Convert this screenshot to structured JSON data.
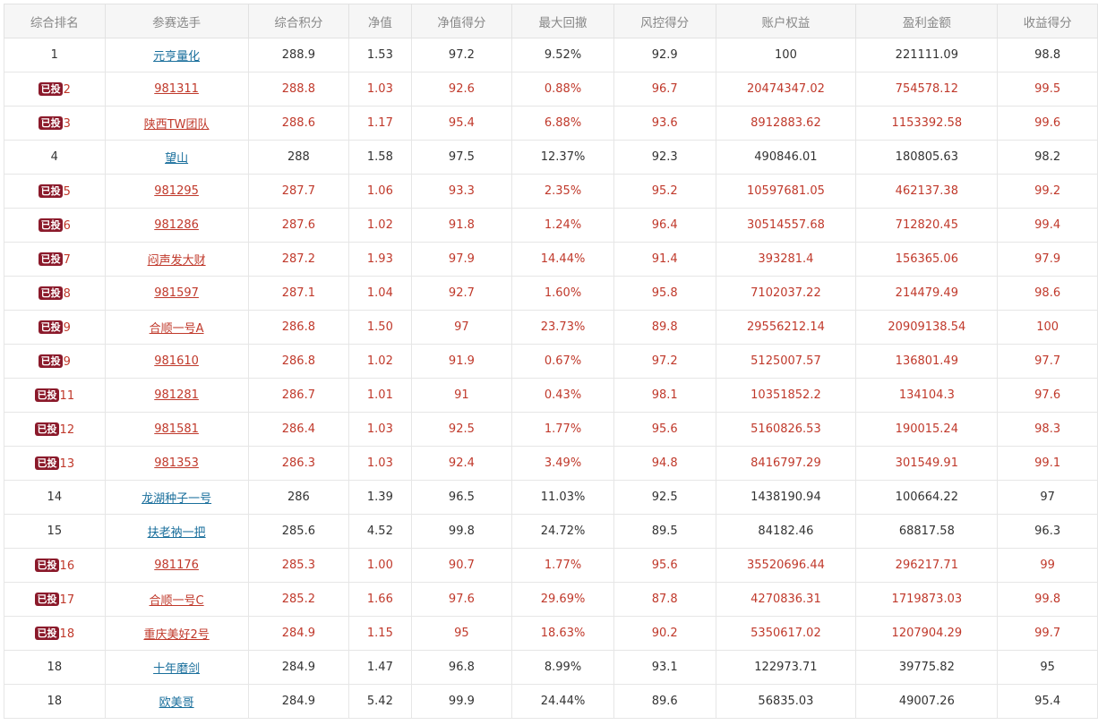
{
  "headers": [
    "综合排名",
    "参赛选手",
    "综合积分",
    "净值",
    "净值得分",
    "最大回撤",
    "风控得分",
    "账户权益",
    "盈利金额",
    "收益得分"
  ],
  "badge_label": "已投",
  "colors": {
    "invested_text": "#c0392b",
    "normal_text": "#333333",
    "link": "#1a6f9c",
    "badge_bg": "#8b1a2b",
    "header_bg": "#f6f6f6"
  },
  "rows": [
    {
      "rank": "1",
      "invested": false,
      "player": "元亨量化",
      "score": "288.9",
      "nav": "1.53",
      "nav_score": "97.2",
      "drawdown": "9.52%",
      "risk_score": "92.9",
      "equity": "100",
      "profit": "221111.09",
      "return_score": "98.8"
    },
    {
      "rank": "2",
      "invested": true,
      "player": "981311",
      "score": "288.8",
      "nav": "1.03",
      "nav_score": "92.6",
      "drawdown": "0.88%",
      "risk_score": "96.7",
      "equity": "20474347.02",
      "profit": "754578.12",
      "return_score": "99.5"
    },
    {
      "rank": "3",
      "invested": true,
      "player": "陕西TW团队",
      "score": "288.6",
      "nav": "1.17",
      "nav_score": "95.4",
      "drawdown": "6.88%",
      "risk_score": "93.6",
      "equity": "8912883.62",
      "profit": "1153392.58",
      "return_score": "99.6"
    },
    {
      "rank": "4",
      "invested": false,
      "player": "望山",
      "score": "288",
      "nav": "1.58",
      "nav_score": "97.5",
      "drawdown": "12.37%",
      "risk_score": "92.3",
      "equity": "490846.01",
      "profit": "180805.63",
      "return_score": "98.2"
    },
    {
      "rank": "5",
      "invested": true,
      "player": "981295",
      "score": "287.7",
      "nav": "1.06",
      "nav_score": "93.3",
      "drawdown": "2.35%",
      "risk_score": "95.2",
      "equity": "10597681.05",
      "profit": "462137.38",
      "return_score": "99.2"
    },
    {
      "rank": "6",
      "invested": true,
      "player": "981286",
      "score": "287.6",
      "nav": "1.02",
      "nav_score": "91.8",
      "drawdown": "1.24%",
      "risk_score": "96.4",
      "equity": "30514557.68",
      "profit": "712820.45",
      "return_score": "99.4"
    },
    {
      "rank": "7",
      "invested": true,
      "player": "闷声发大财",
      "score": "287.2",
      "nav": "1.93",
      "nav_score": "97.9",
      "drawdown": "14.44%",
      "risk_score": "91.4",
      "equity": "393281.4",
      "profit": "156365.06",
      "return_score": "97.9"
    },
    {
      "rank": "8",
      "invested": true,
      "player": "981597",
      "score": "287.1",
      "nav": "1.04",
      "nav_score": "92.7",
      "drawdown": "1.60%",
      "risk_score": "95.8",
      "equity": "7102037.22",
      "profit": "214479.49",
      "return_score": "98.6"
    },
    {
      "rank": "9",
      "invested": true,
      "player": "合顺一号A",
      "score": "286.8",
      "nav": "1.50",
      "nav_score": "97",
      "drawdown": "23.73%",
      "risk_score": "89.8",
      "equity": "29556212.14",
      "profit": "20909138.54",
      "return_score": "100"
    },
    {
      "rank": "9",
      "invested": true,
      "player": "981610",
      "score": "286.8",
      "nav": "1.02",
      "nav_score": "91.9",
      "drawdown": "0.67%",
      "risk_score": "97.2",
      "equity": "5125007.57",
      "profit": "136801.49",
      "return_score": "97.7"
    },
    {
      "rank": "11",
      "invested": true,
      "player": "981281",
      "score": "286.7",
      "nav": "1.01",
      "nav_score": "91",
      "drawdown": "0.43%",
      "risk_score": "98.1",
      "equity": "10351852.2",
      "profit": "134104.3",
      "return_score": "97.6"
    },
    {
      "rank": "12",
      "invested": true,
      "player": "981581",
      "score": "286.4",
      "nav": "1.03",
      "nav_score": "92.5",
      "drawdown": "1.77%",
      "risk_score": "95.6",
      "equity": "5160826.53",
      "profit": "190015.24",
      "return_score": "98.3"
    },
    {
      "rank": "13",
      "invested": true,
      "player": "981353",
      "score": "286.3",
      "nav": "1.03",
      "nav_score": "92.4",
      "drawdown": "3.49%",
      "risk_score": "94.8",
      "equity": "8416797.29",
      "profit": "301549.91",
      "return_score": "99.1"
    },
    {
      "rank": "14",
      "invested": false,
      "player": "龙湖种子一号",
      "score": "286",
      "nav": "1.39",
      "nav_score": "96.5",
      "drawdown": "11.03%",
      "risk_score": "92.5",
      "equity": "1438190.94",
      "profit": "100664.22",
      "return_score": "97"
    },
    {
      "rank": "15",
      "invested": false,
      "player": "扶老衲一把",
      "score": "285.6",
      "nav": "4.52",
      "nav_score": "99.8",
      "drawdown": "24.72%",
      "risk_score": "89.5",
      "equity": "84182.46",
      "profit": "68817.58",
      "return_score": "96.3"
    },
    {
      "rank": "16",
      "invested": true,
      "player": "981176",
      "score": "285.3",
      "nav": "1.00",
      "nav_score": "90.7",
      "drawdown": "1.77%",
      "risk_score": "95.6",
      "equity": "35520696.44",
      "profit": "296217.71",
      "return_score": "99"
    },
    {
      "rank": "17",
      "invested": true,
      "player": "合顺一号C",
      "score": "285.2",
      "nav": "1.66",
      "nav_score": "97.6",
      "drawdown": "29.69%",
      "risk_score": "87.8",
      "equity": "4270836.31",
      "profit": "1719873.03",
      "return_score": "99.8"
    },
    {
      "rank": "18",
      "invested": true,
      "player": "重庆美好2号",
      "score": "284.9",
      "nav": "1.15",
      "nav_score": "95",
      "drawdown": "18.63%",
      "risk_score": "90.2",
      "equity": "5350617.02",
      "profit": "1207904.29",
      "return_score": "99.7"
    },
    {
      "rank": "18",
      "invested": false,
      "player": "十年磨剑",
      "score": "284.9",
      "nav": "1.47",
      "nav_score": "96.8",
      "drawdown": "8.99%",
      "risk_score": "93.1",
      "equity": "122973.71",
      "profit": "39775.82",
      "return_score": "95"
    },
    {
      "rank": "18",
      "invested": false,
      "player": "欧美哥",
      "score": "284.9",
      "nav": "5.42",
      "nav_score": "99.9",
      "drawdown": "24.44%",
      "risk_score": "89.6",
      "equity": "56835.03",
      "profit": "49007.26",
      "return_score": "95.4"
    }
  ]
}
